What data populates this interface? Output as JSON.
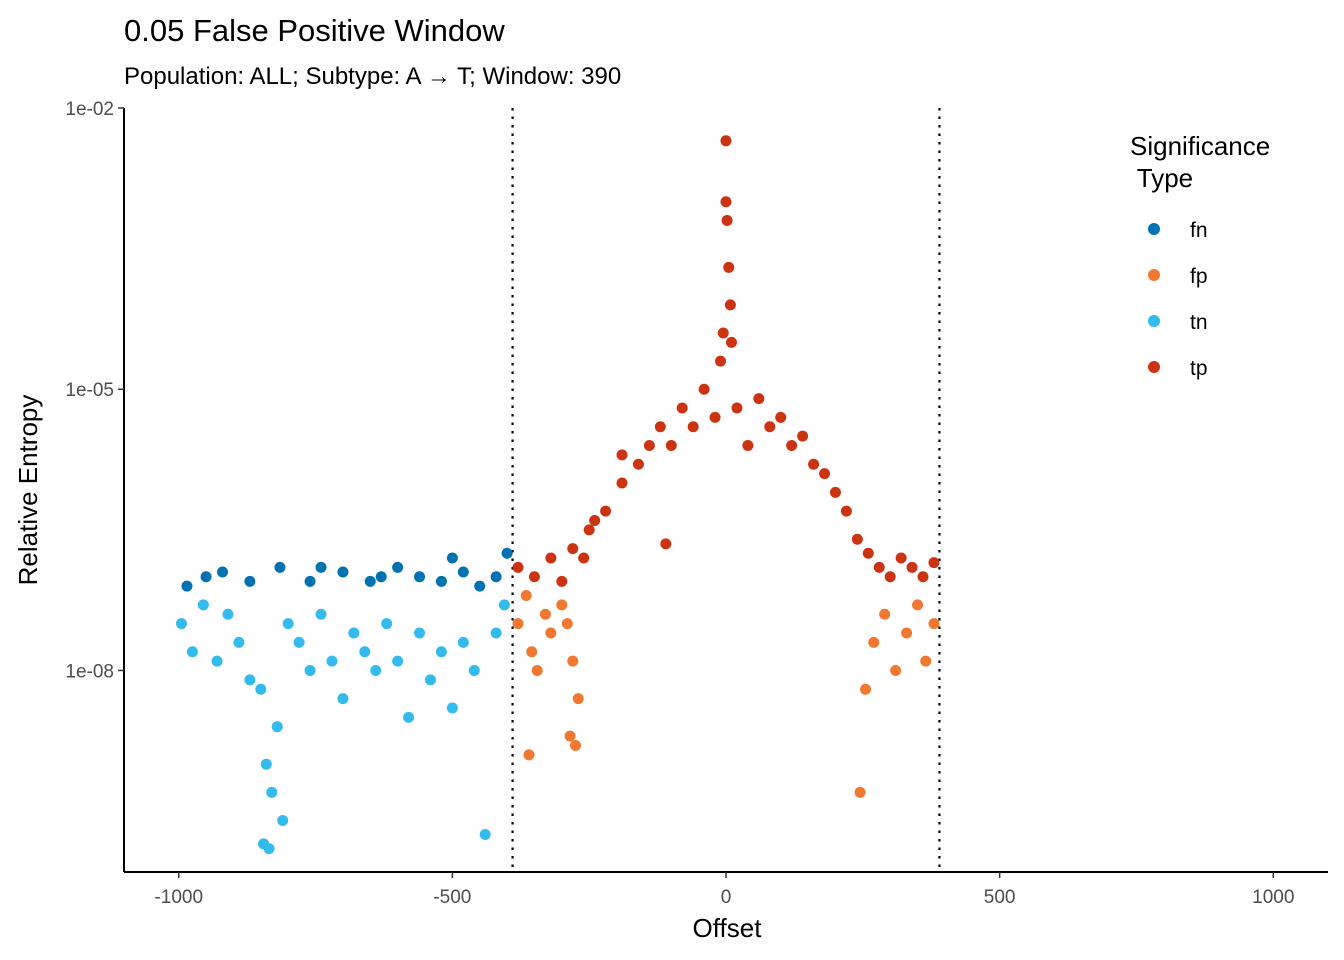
{
  "chart_data": {
    "type": "scatter",
    "title": "0.05 False Positive Window",
    "subtitle": "Population: ALL; Subtype: A → T; Window: 390",
    "xlabel": "Offset",
    "ylabel": "Relative Entropy",
    "xlim": [
      -1100,
      1100
    ],
    "ylim_log10": [
      -10.15,
      -2
    ],
    "y_scale": "log10",
    "x_ticks": [
      -1000,
      -500,
      0,
      500,
      1000
    ],
    "x_tick_labels": [
      "-1000",
      "-500",
      "0",
      "500",
      "1000"
    ],
    "y_ticks": [
      1e-08,
      1e-05,
      0.01
    ],
    "y_tick_labels": [
      "1e-08",
      "1e-05",
      "1e-02"
    ],
    "window_lines": [
      -390,
      390
    ],
    "grid": false,
    "legend": {
      "title_line1": "Significance",
      "title_line2": " Type",
      "position": "top-right",
      "entries": [
        {
          "label": "fn",
          "color": "#0072B2"
        },
        {
          "label": "fp",
          "color": "#F07830"
        },
        {
          "label": "tn",
          "color": "#33BBEE"
        },
        {
          "label": "tp",
          "color": "#CC3311"
        }
      ]
    },
    "series": [
      {
        "name": "fn",
        "color": "#0072B2",
        "points": [
          [
            -985,
            -7.1
          ],
          [
            -920,
            -6.95
          ],
          [
            -870,
            -7.05
          ],
          [
            -815,
            -6.9
          ],
          [
            -760,
            -7.05
          ],
          [
            -700,
            -6.95
          ],
          [
            -650,
            -7.05
          ],
          [
            -600,
            -6.9
          ],
          [
            -560,
            -7.0
          ],
          [
            -520,
            -7.05
          ],
          [
            -500,
            -6.8
          ],
          [
            -480,
            -6.95
          ],
          [
            -450,
            -7.1
          ],
          [
            -420,
            -7.0
          ],
          [
            -400,
            -6.75
          ],
          [
            -950,
            -7.0
          ],
          [
            -740,
            -6.9
          ],
          [
            -630,
            -7.0
          ]
        ]
      },
      {
        "name": "tn",
        "color": "#33BBEE",
        "points": [
          [
            -995,
            -7.5
          ],
          [
            -975,
            -7.8
          ],
          [
            -955,
            -7.3
          ],
          [
            -930,
            -7.9
          ],
          [
            -910,
            -7.4
          ],
          [
            -890,
            -7.7
          ],
          [
            -870,
            -8.1
          ],
          [
            -850,
            -8.2
          ],
          [
            -840,
            -9.0
          ],
          [
            -830,
            -9.3
          ],
          [
            -820,
            -8.6
          ],
          [
            -800,
            -7.5
          ],
          [
            -780,
            -7.7
          ],
          [
            -760,
            -8.0
          ],
          [
            -740,
            -7.4
          ],
          [
            -720,
            -7.9
          ],
          [
            -700,
            -8.3
          ],
          [
            -680,
            -7.6
          ],
          [
            -660,
            -7.8
          ],
          [
            -640,
            -8.0
          ],
          [
            -620,
            -7.5
          ],
          [
            -600,
            -7.9
          ],
          [
            -580,
            -8.5
          ],
          [
            -560,
            -7.6
          ],
          [
            -540,
            -8.1
          ],
          [
            -520,
            -7.8
          ],
          [
            -500,
            -8.4
          ],
          [
            -480,
            -7.7
          ],
          [
            -460,
            -8.0
          ],
          [
            -440,
            -9.75
          ],
          [
            -420,
            -7.6
          ],
          [
            -405,
            -7.3
          ],
          [
            -845,
            -9.85
          ],
          [
            -835,
            -9.9
          ],
          [
            -810,
            -9.6
          ]
        ]
      },
      {
        "name": "fp",
        "color": "#F07830",
        "points": [
          [
            -380,
            -7.5
          ],
          [
            -365,
            -7.2
          ],
          [
            -355,
            -7.8
          ],
          [
            -345,
            -8.0
          ],
          [
            -330,
            -7.4
          ],
          [
            -320,
            -7.6
          ],
          [
            -300,
            -7.3
          ],
          [
            -290,
            -7.5
          ],
          [
            -280,
            -7.9
          ],
          [
            -270,
            -8.3
          ],
          [
            -360,
            -8.9
          ],
          [
            -285,
            -8.7
          ],
          [
            -275,
            -8.8
          ],
          [
            245,
            -9.3
          ],
          [
            255,
            -8.2
          ],
          [
            270,
            -7.7
          ],
          [
            290,
            -7.4
          ],
          [
            310,
            -8.0
          ],
          [
            330,
            -7.6
          ],
          [
            350,
            -7.3
          ],
          [
            365,
            -7.9
          ],
          [
            380,
            -7.5
          ]
        ]
      },
      {
        "name": "tp",
        "color": "#CC3311",
        "points": [
          [
            -380,
            -6.9
          ],
          [
            -350,
            -7.0
          ],
          [
            -320,
            -6.8
          ],
          [
            -300,
            -7.05
          ],
          [
            -280,
            -6.7
          ],
          [
            -250,
            -6.5
          ],
          [
            -220,
            -6.3
          ],
          [
            -190,
            -6.0
          ],
          [
            -160,
            -5.8
          ],
          [
            -140,
            -5.6
          ],
          [
            -120,
            -5.4
          ],
          [
            -100,
            -5.6
          ],
          [
            -80,
            -5.2
          ],
          [
            -60,
            -5.4
          ],
          [
            -40,
            -5.0
          ],
          [
            -20,
            -5.3
          ],
          [
            -10,
            -4.7
          ],
          [
            -5,
            -4.4
          ],
          [
            0,
            -2.35
          ],
          [
            0,
            -3.0
          ],
          [
            2,
            -3.2
          ],
          [
            5,
            -3.7
          ],
          [
            8,
            -4.1
          ],
          [
            10,
            -4.5
          ],
          [
            20,
            -5.2
          ],
          [
            40,
            -5.6
          ],
          [
            60,
            -5.1
          ],
          [
            80,
            -5.4
          ],
          [
            100,
            -5.3
          ],
          [
            120,
            -5.6
          ],
          [
            140,
            -5.5
          ],
          [
            160,
            -5.8
          ],
          [
            180,
            -5.9
          ],
          [
            200,
            -6.1
          ],
          [
            220,
            -6.3
          ],
          [
            240,
            -6.6
          ],
          [
            260,
            -6.75
          ],
          [
            280,
            -6.9
          ],
          [
            300,
            -7.0
          ],
          [
            320,
            -6.8
          ],
          [
            340,
            -6.9
          ],
          [
            360,
            -7.0
          ],
          [
            380,
            -6.85
          ],
          [
            -110,
            -6.65
          ],
          [
            -190,
            -5.7
          ],
          [
            -260,
            -6.8
          ],
          [
            -240,
            -6.4
          ]
        ]
      }
    ]
  }
}
